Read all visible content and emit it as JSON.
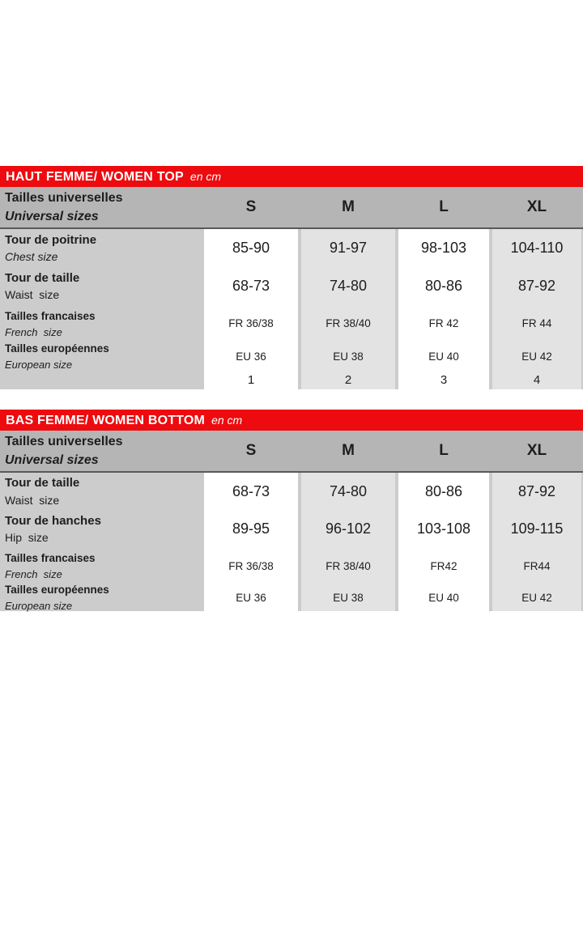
{
  "colors": {
    "accent_red": "#ed0b0f",
    "header_row_gray": "#b5b5b5",
    "table_base_gray": "#cccccc",
    "alt_column_gray": "#e3e3e3",
    "column_white": "#ffffff",
    "divider_dark": "#595959",
    "text_dark": "#1d1d1b",
    "bar_text": "#ffffff"
  },
  "tables": [
    {
      "title": "HAUT FEMME/ WOMEN TOP",
      "unit": "en cm",
      "header": {
        "label_fr": "Tailles universelles",
        "label_en": "Universal sizes",
        "columns": [
          "S",
          "M",
          "L",
          "XL"
        ]
      },
      "rows": [
        {
          "label_fr": "Tour de poitrine",
          "label_en": "Chest size",
          "values": [
            "85-90",
            "91-97",
            "98-103",
            "104-110"
          ]
        },
        {
          "label_fr": "Tour de taille",
          "label_en": "Waist  size",
          "values": [
            "68-73",
            "74-80",
            "80-86",
            "87-92"
          ]
        },
        {
          "label_fr": "Tailles francaises",
          "label_en": "French  size",
          "values": [
            "FR 36/38",
            "FR 38/40",
            "FR 42",
            "FR 44"
          ]
        },
        {
          "label_fr": "Tailles européennes",
          "label_en": "European size",
          "values": [
            "EU 36",
            "EU 38",
            "EU 40",
            "EU 42"
          ]
        },
        {
          "label_fr": "",
          "label_en": "",
          "values": [
            "1",
            "2",
            "3",
            "4"
          ]
        }
      ]
    },
    {
      "title": "BAS FEMME/ WOMEN BOTTOM",
      "unit": "en cm",
      "header": {
        "label_fr": "Tailles universelles",
        "label_en": "Universal sizes",
        "columns": [
          "S",
          "M",
          "L",
          "XL"
        ]
      },
      "rows": [
        {
          "label_fr": "Tour de taille",
          "label_en": "Waist  size",
          "values": [
            "68-73",
            "74-80",
            "80-86",
            "87-92"
          ]
        },
        {
          "label_fr": "Tour de hanches",
          "label_en": "Hip  size",
          "values": [
            "89-95",
            "96-102",
            "103-108",
            "109-115"
          ]
        },
        {
          "label_fr": "Tailles francaises",
          "label_en": "French  size",
          "values": [
            "FR 36/38",
            "FR 38/40",
            "FR42",
            "FR44"
          ]
        },
        {
          "label_fr": "Tailles européennes",
          "label_en": "European size",
          "values": [
            "EU 36",
            "EU 38",
            "EU 40",
            "EU 42"
          ]
        }
      ]
    }
  ]
}
